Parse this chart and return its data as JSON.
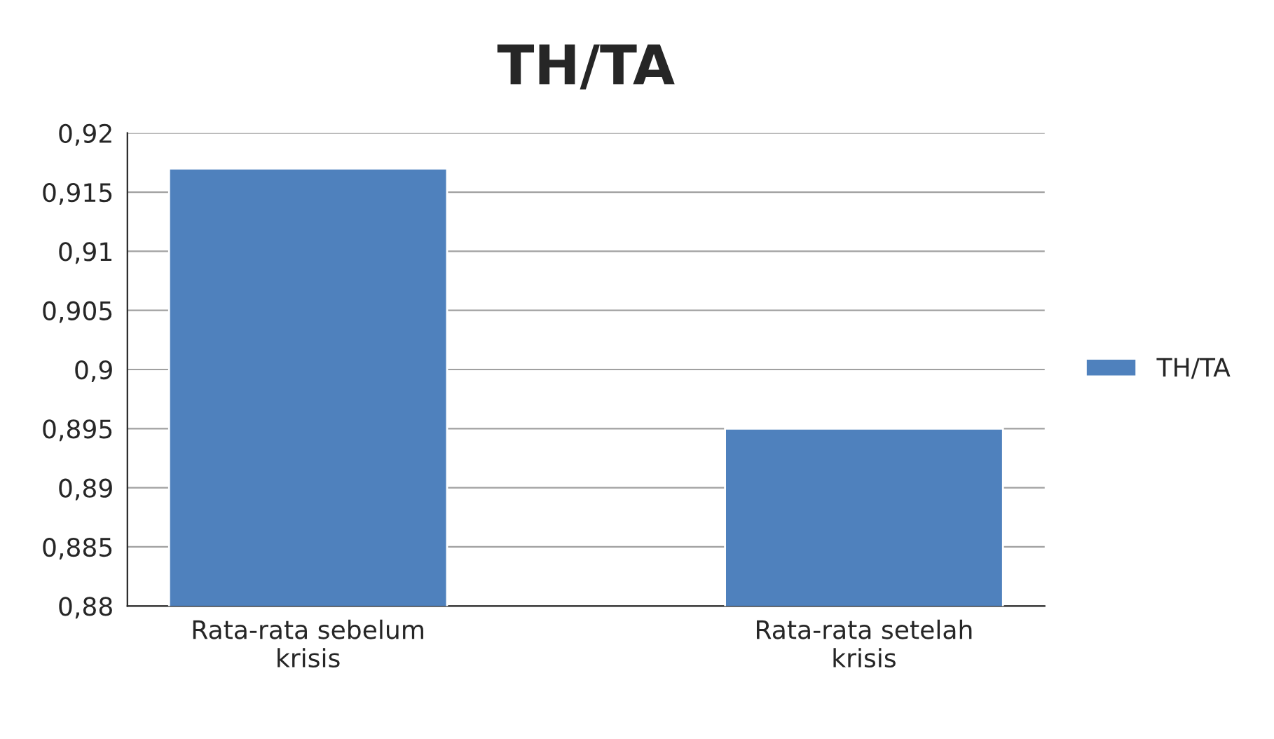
{
  "chart_data": {
    "type": "bar",
    "title": "TH/TA",
    "categories": [
      "Rata-rata sebelum\nkrisis",
      "Rata-rata setelah\nkrisis"
    ],
    "series": [
      {
        "name": "TH/TA",
        "color": "#4f81bd",
        "values": [
          0.917,
          0.895
        ]
      }
    ],
    "ylim": [
      0.88,
      0.92
    ],
    "yticks": [
      {
        "value": 0.88,
        "label": "0,88"
      },
      {
        "value": 0.885,
        "label": "0,885"
      },
      {
        "value": 0.89,
        "label": "0,89"
      },
      {
        "value": 0.895,
        "label": "0,895"
      },
      {
        "value": 0.9,
        "label": "0,9"
      },
      {
        "value": 0.905,
        "label": "0,905"
      },
      {
        "value": 0.91,
        "label": "0,91"
      },
      {
        "value": 0.915,
        "label": "0,915"
      },
      {
        "value": 0.92,
        "label": "0,92"
      }
    ],
    "grid": "y",
    "legend": "right"
  }
}
